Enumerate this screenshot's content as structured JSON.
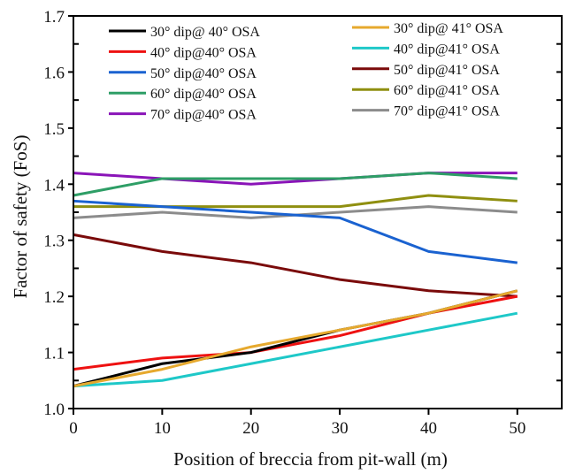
{
  "chart_data": {
    "type": "line",
    "title": "",
    "xlabel": "Position of breccia from pit-wall (m)",
    "ylabel": "Factor of safety (FoS)",
    "x": [
      0,
      10,
      20,
      30,
      40,
      50
    ],
    "xlim": [
      0,
      55
    ],
    "ylim": [
      1.0,
      1.7
    ],
    "xticks": [
      0,
      10,
      20,
      30,
      40,
      50
    ],
    "xtick_labels": [
      "0",
      "10",
      "20",
      "30",
      "40",
      "50"
    ],
    "yticks": [
      1.0,
      1.1,
      1.2,
      1.3,
      1.4,
      1.5,
      1.6,
      1.7
    ],
    "ytick_labels": [
      "1.0",
      "1.1",
      "1.2",
      "1.3",
      "1.4",
      "1.5",
      "1.6",
      "1.7"
    ],
    "grid": false,
    "legend_position": "top",
    "series": [
      {
        "name": "30° dip@ 40° OSA",
        "color": "#000000",
        "values": [
          1.04,
          1.08,
          1.1,
          1.14,
          1.17,
          1.21
        ]
      },
      {
        "name": "40° dip@40° OSA",
        "color": "#ee1111",
        "values": [
          1.07,
          1.09,
          1.1,
          1.13,
          1.17,
          1.2
        ]
      },
      {
        "name": "50° dip@40° OSA",
        "color": "#1a62d0",
        "values": [
          1.37,
          1.36,
          1.35,
          1.34,
          1.28,
          1.26
        ]
      },
      {
        "name": "60° dip@40° OSA",
        "color": "#2e9e66",
        "values": [
          1.38,
          1.41,
          1.41,
          1.41,
          1.42,
          1.41
        ]
      },
      {
        "name": "70° dip@40° OSA",
        "color": "#8a14b8",
        "values": [
          1.42,
          1.41,
          1.4,
          1.41,
          1.42,
          1.42
        ]
      },
      {
        "name": "30° dip@ 41° OSA",
        "color": "#e6a92e",
        "values": [
          1.04,
          1.07,
          1.11,
          1.14,
          1.17,
          1.21
        ]
      },
      {
        "name": "40° dip@41° OSA",
        "color": "#1ec8c8",
        "values": [
          1.04,
          1.05,
          1.08,
          1.11,
          1.14,
          1.17
        ]
      },
      {
        "name": "50° dip@41° OSA",
        "color": "#7a0a0a",
        "values": [
          1.31,
          1.28,
          1.26,
          1.23,
          1.21,
          1.2
        ]
      },
      {
        "name": "60° dip@41° OSA",
        "color": "#8f8f10",
        "values": [
          1.36,
          1.36,
          1.36,
          1.36,
          1.38,
          1.37
        ]
      },
      {
        "name": "70° dip@41° OSA",
        "color": "#8c8c8c",
        "values": [
          1.34,
          1.35,
          1.34,
          1.35,
          1.36,
          1.35
        ]
      }
    ]
  }
}
